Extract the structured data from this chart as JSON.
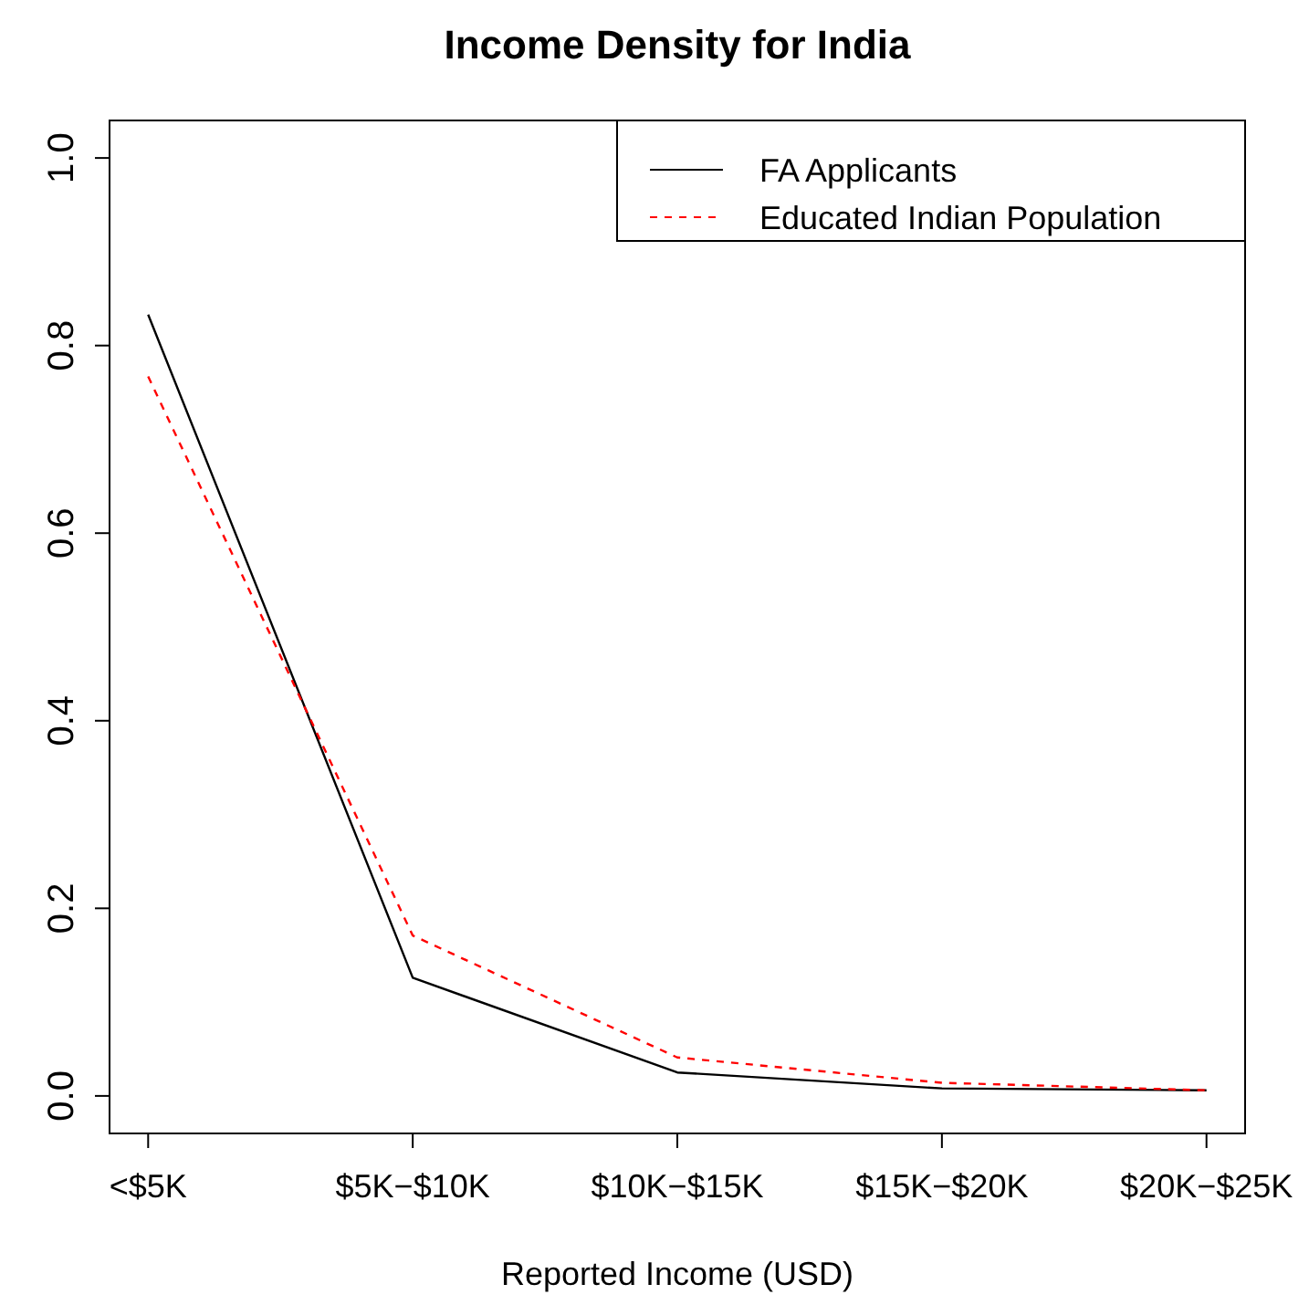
{
  "chart_data": {
    "type": "line",
    "title": "Income Density for India",
    "xlabel": "Reported Income (USD)",
    "categories": [
      "<$5K",
      "$5K−$10K",
      "$10K−$15K",
      "$15K−$20K",
      "$20K−$25K"
    ],
    "ylim": [
      -0.04,
      1.04
    ],
    "yticks": [
      {
        "value": 0,
        "label": "0.0"
      },
      0.2,
      0.4,
      0.6,
      0.8,
      {
        "value": 1,
        "label": "1.0"
      }
    ],
    "legend": "top right",
    "grid": false,
    "series": [
      {
        "name": "FA Applicants",
        "color": "#000000",
        "line_style": "solid",
        "values": [
          0.833,
          0.126,
          0.025,
          0.008,
          0.006
        ]
      },
      {
        "name": "Educated Indian Population",
        "color": "#ff0000",
        "line_style": "dashed",
        "values": [
          0.767,
          0.171,
          0.041,
          0.014,
          0.006
        ]
      }
    ]
  }
}
